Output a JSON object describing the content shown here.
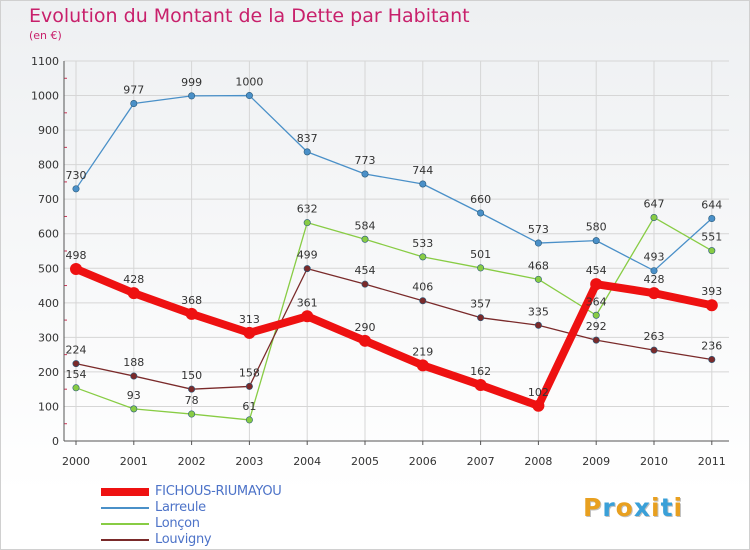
{
  "header": {
    "title": "Evolution du Montant de la Dette par Habitant",
    "unit": "(en €)"
  },
  "logo": {
    "letters": [
      "P",
      "r",
      "o",
      "x",
      "i",
      "t",
      "i"
    ],
    "colors": [
      "#e8a020",
      "#3aa0d8",
      "#e8a020",
      "#3aa0d8",
      "#e8a020",
      "#3aa0d8",
      "#e8a020"
    ]
  },
  "chart_data": {
    "type": "line",
    "title": "Evolution du Montant de la Dette par Habitant",
    "subtitle": "(en €)",
    "xlabel": "",
    "ylabel": "",
    "x": [
      "2000",
      "2001",
      "2002",
      "2003",
      "2004",
      "2005",
      "2006",
      "2007",
      "2008",
      "2009",
      "2010",
      "2011"
    ],
    "ylim": [
      0,
      1100
    ],
    "yticks": [
      0,
      100,
      200,
      300,
      400,
      500,
      600,
      700,
      800,
      900,
      1000,
      1100
    ],
    "grid": true,
    "legend_placement": "bottom-left",
    "series": [
      {
        "name": "FICHOUS-RIUMAYOU",
        "color": "#ee1111",
        "values": [
          498,
          428,
          368,
          313,
          361,
          290,
          219,
          162,
          102,
          454,
          428,
          393
        ],
        "labels": [
          "498",
          "428",
          "368",
          "313",
          "361",
          "290",
          "219",
          "162",
          "102",
          "454",
          "428",
          "393"
        ]
      },
      {
        "name": "Larreule",
        "color": "#4a90c8",
        "values": [
          730,
          977,
          999,
          1000,
          837,
          773,
          744,
          660,
          573,
          580,
          493,
          644
        ],
        "labels": [
          "730",
          "977",
          "999",
          "1000",
          "837",
          "773",
          "744",
          "660",
          "573",
          "580",
          "493",
          "644"
        ]
      },
      {
        "name": "Lonçon",
        "color": "#88cc44",
        "values": [
          154,
          93,
          78,
          61,
          632,
          584,
          533,
          501,
          468,
          364,
          647,
          551
        ],
        "labels": [
          "154",
          "93",
          "78",
          "61",
          "632",
          "584",
          "533",
          "501",
          "468",
          "364",
          "647",
          "551"
        ]
      },
      {
        "name": "Louvigny",
        "color": "#7a2a2a",
        "values": [
          224,
          188,
          150,
          158,
          499,
          454,
          406,
          357,
          335,
          292,
          263,
          236
        ],
        "labels": [
          "224",
          "188",
          "150",
          "158",
          "499",
          "454",
          "406",
          "357",
          "335",
          "292",
          "263",
          "236"
        ]
      }
    ]
  }
}
